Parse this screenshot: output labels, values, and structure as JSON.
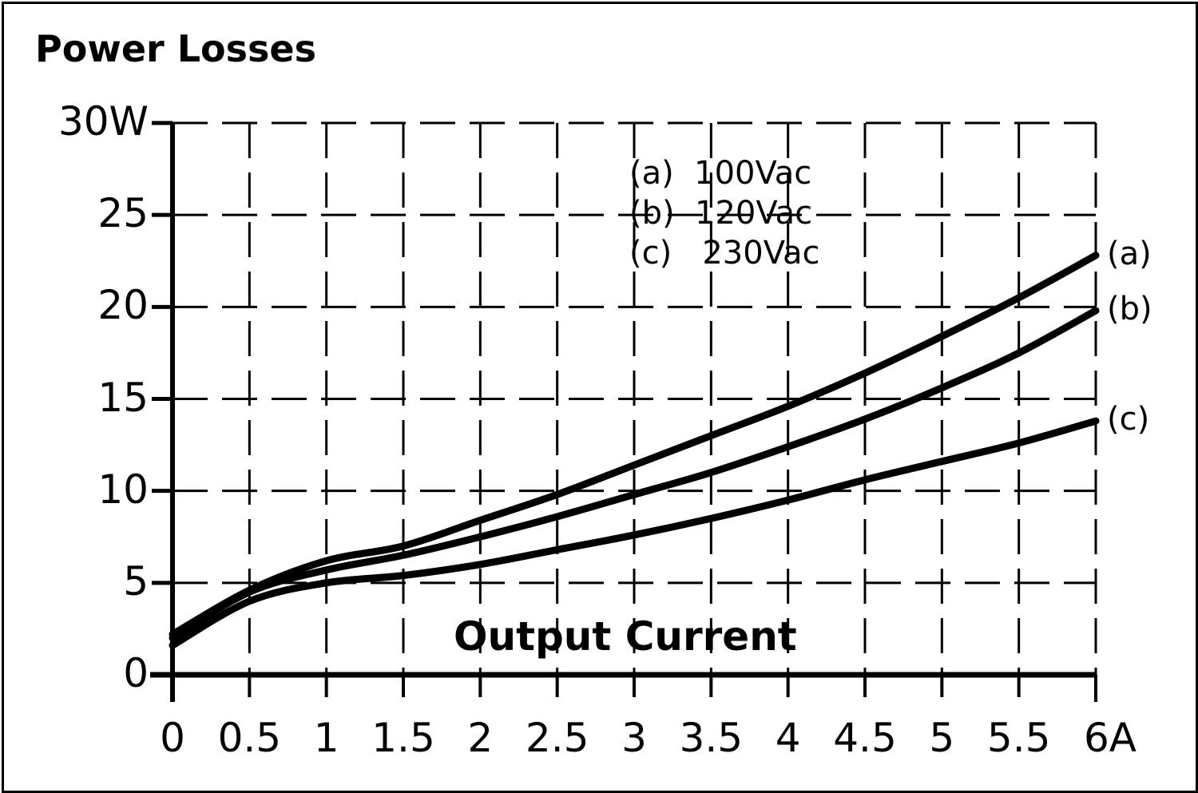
{
  "chart_data": {
    "type": "line",
    "title": "Power Losses",
    "xlabel": "Output Current",
    "ylabel": "Power Losses",
    "x_unit": "A",
    "y_unit": "W",
    "xlim": [
      0,
      6
    ],
    "ylim": [
      0,
      30
    ],
    "grid": true,
    "grid_style": "dashed",
    "legend_position": "upper-center",
    "x_tick_labels": [
      "0",
      "0.5",
      "1",
      "1.5",
      "2",
      "2.5",
      "3",
      "3.5",
      "4",
      "4.5",
      "5",
      "5.5",
      "6A"
    ],
    "y_tick_labels": [
      "0",
      "5",
      "10",
      "15",
      "20",
      "25",
      "30W"
    ],
    "x": [
      0,
      0.5,
      1,
      1.5,
      2,
      2.5,
      3,
      3.5,
      4,
      4.5,
      5,
      5.5,
      6
    ],
    "series": [
      {
        "name": "(a) 100Vac",
        "key": "a",
        "values": [
          2.2,
          4.6,
          6.2,
          7.0,
          8.4,
          9.8,
          11.4,
          13.0,
          14.6,
          16.4,
          18.4,
          20.5,
          22.8
        ]
      },
      {
        "name": "(b) 120Vac",
        "key": "b",
        "values": [
          2.0,
          4.5,
          5.7,
          6.5,
          7.5,
          8.6,
          9.8,
          11.0,
          12.4,
          13.9,
          15.6,
          17.5,
          19.8
        ]
      },
      {
        "name": "(c) 230Vac",
        "key": "c",
        "values": [
          1.6,
          4.0,
          5.0,
          5.4,
          6.0,
          6.8,
          7.6,
          8.5,
          9.5,
          10.6,
          11.6,
          12.6,
          13.8
        ]
      }
    ]
  },
  "header": {
    "title": "Power Losses"
  },
  "axes": {
    "xlabel": "Output Current",
    "y_ticks": [
      "0",
      "5",
      "10",
      "15",
      "20",
      "25",
      "30W"
    ],
    "x_ticks": [
      "0",
      "0.5",
      "1",
      "1.5",
      "2",
      "2.5",
      "3",
      "3.5",
      "4",
      "4.5",
      "5",
      "5.5",
      "6A"
    ]
  },
  "legend": {
    "items": [
      "(a)  100Vac",
      "(b)  120Vac",
      "(c)   230Vac"
    ]
  },
  "end_labels": [
    "(a)",
    "(b)",
    "(c)"
  ],
  "colors": {
    "line": "#000000",
    "background": "#ffffff",
    "grid": "#000000"
  }
}
